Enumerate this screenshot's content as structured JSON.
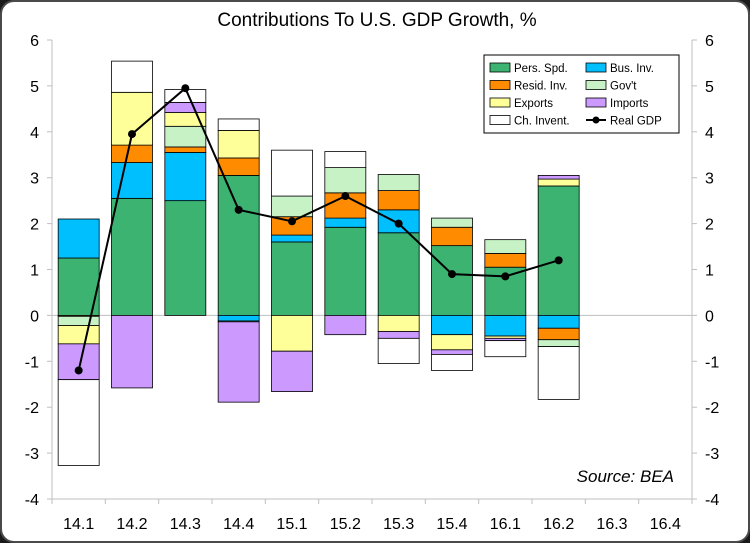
{
  "chart_data": {
    "type": "bar",
    "stacked": true,
    "title": "Contributions To U.S. GDP Growth, %",
    "categories": [
      "14.1",
      "14.2",
      "14.3",
      "14.4",
      "15.1",
      "15.2",
      "15.3",
      "15.4",
      "16.1",
      "16.2",
      "16.3",
      "16.4"
    ],
    "ylim": [
      -4,
      6
    ],
    "yticks": [
      6,
      5,
      4,
      3,
      2,
      1,
      0,
      -1,
      -2,
      -3,
      -4
    ],
    "ytick_labels": [
      "6",
      "5",
      "4",
      "3",
      "2",
      "1",
      "0",
      "-1",
      "-2",
      "-3",
      "-4"
    ],
    "secondary_y_axis": true,
    "grid": false,
    "legend_position": "top-right",
    "series": [
      {
        "name": "Pers. Spd.",
        "kind": "bar",
        "color": "#3cb371",
        "values": [
          1.25,
          2.55,
          2.5,
          3.05,
          1.6,
          1.92,
          1.8,
          1.52,
          1.05,
          2.82,
          null,
          null
        ]
      },
      {
        "name": "Bus. Inv.",
        "kind": "bar",
        "color": "#00bfff",
        "values": [
          0.85,
          0.78,
          1.05,
          -0.12,
          0.15,
          0.2,
          0.5,
          -0.42,
          -0.45,
          -0.28,
          null,
          null
        ]
      },
      {
        "name": "Resid. Inv.",
        "kind": "bar",
        "color": "#ff8c00",
        "values": [
          -0.02,
          0.38,
          0.12,
          0.38,
          0.4,
          0.55,
          0.42,
          0.4,
          0.3,
          -0.25,
          null,
          null
        ]
      },
      {
        "name": "Gov't",
        "kind": "bar",
        "color": "#c6f2c6",
        "values": [
          -0.2,
          0.0,
          0.45,
          -0.02,
          0.45,
          0.55,
          0.35,
          0.2,
          0.3,
          -0.15,
          null,
          null
        ]
      },
      {
        "name": "Exports",
        "kind": "bar",
        "color": "#ffff99",
        "values": [
          -0.4,
          1.15,
          0.3,
          0.6,
          -0.78,
          0.0,
          -0.35,
          -0.33,
          -0.05,
          0.15,
          null,
          null
        ]
      },
      {
        "name": "Imports",
        "kind": "bar",
        "color": "#cc99ff",
        "values": [
          -0.78,
          -1.58,
          0.22,
          -1.75,
          -0.88,
          -0.42,
          -0.15,
          -0.1,
          -0.05,
          0.08,
          null,
          null
        ]
      },
      {
        "name": "Ch. Invent.",
        "kind": "bar",
        "color": "#ffffff",
        "values": [
          -1.87,
          0.68,
          0.28,
          0.25,
          1.0,
          0.35,
          -0.55,
          -0.35,
          -0.35,
          -1.15,
          null,
          null
        ]
      },
      {
        "name": "Real GDP",
        "kind": "line",
        "color": "#000000",
        "values": [
          -1.2,
          3.95,
          4.95,
          2.3,
          2.05,
          2.6,
          2.0,
          0.9,
          0.85,
          1.2,
          null,
          null
        ]
      }
    ],
    "annotation": "Source: BEA"
  }
}
